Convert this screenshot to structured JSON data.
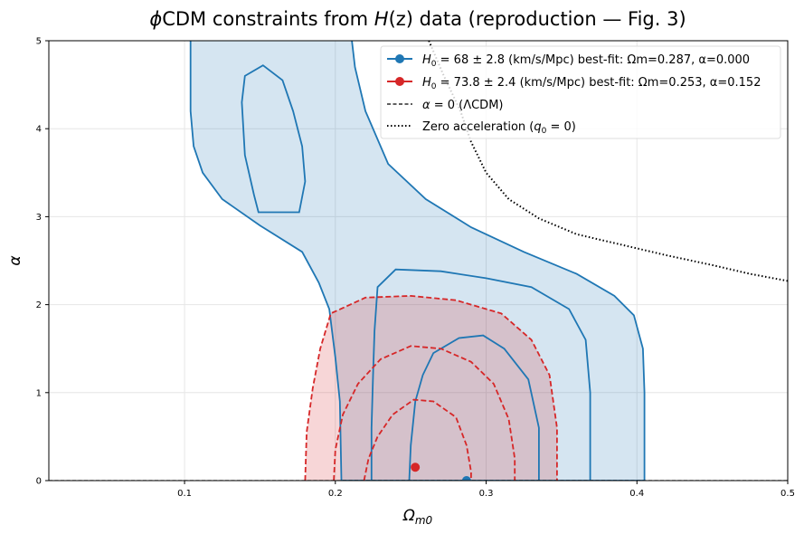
{
  "chart_data": {
    "type": "contour",
    "title_parts": {
      "prefix": "ϕ",
      "mid": "CDM constraints from ",
      "var": "H",
      "rest": "(z) data (reproduction — Fig. 3)"
    },
    "xlabel": {
      "main": "Ω",
      "sub": "m0"
    },
    "ylabel": "α",
    "xlim": [
      0.01,
      0.5
    ],
    "ylim": [
      0,
      5
    ],
    "xticks": [
      0.1,
      0.2,
      0.3,
      0.4,
      0.5
    ],
    "yticks": [
      0,
      1,
      2,
      3,
      4,
      5
    ],
    "grid": true,
    "legend_position": "top-right",
    "series": [
      {
        "name": "H0 = 68 ± 2.8 (km/s/Mpc) best-fit: Ωm=0.287, α=0.000",
        "label_parts": {
          "var": "H",
          "sub": "0",
          "eq": " = 68 ± 2.8",
          "rest": " (km/s/Mpc) best-fit: Ωm=0.287, α=0.000"
        },
        "color": "#1f77b4",
        "best_fit": {
          "x": 0.287,
          "y": 0.0
        },
        "contours": [
          [
            [
              0.104,
              5.0
            ],
            [
              0.104,
              4.2
            ],
            [
              0.106,
              3.8
            ],
            [
              0.112,
              3.5
            ],
            [
              0.125,
              3.2
            ],
            [
              0.15,
              2.9
            ],
            [
              0.178,
              2.6
            ],
            [
              0.189,
              2.25
            ],
            [
              0.196,
              1.95
            ],
            [
              0.2,
              1.4
            ],
            [
              0.203,
              0.9
            ],
            [
              0.204,
              0.0
            ],
            [
              0.405,
              0.0
            ],
            [
              0.405,
              1.0
            ],
            [
              0.404,
              1.5
            ],
            [
              0.398,
              1.88
            ],
            [
              0.385,
              2.1
            ],
            [
              0.36,
              2.35
            ],
            [
              0.325,
              2.6
            ],
            [
              0.29,
              2.88
            ],
            [
              0.26,
              3.2
            ],
            [
              0.235,
              3.6
            ],
            [
              0.22,
              4.2
            ],
            [
              0.213,
              4.7
            ],
            [
              0.211,
              5.0
            ]
          ],
          [
            [
              0.149,
              3.05
            ],
            [
              0.176,
              3.05
            ],
            [
              0.18,
              3.4
            ],
            [
              0.178,
              3.8
            ],
            [
              0.172,
              4.2
            ],
            [
              0.165,
              4.55
            ],
            [
              0.152,
              4.72
            ],
            [
              0.14,
              4.6
            ],
            [
              0.138,
              4.3
            ],
            [
              0.14,
              3.7
            ],
            [
              0.146,
              3.25
            ]
          ],
          [
            [
              0.224,
              0.0
            ],
            [
              0.224,
              0.6
            ],
            [
              0.225,
              1.2
            ],
            [
              0.226,
              1.7
            ],
            [
              0.228,
              2.2
            ],
            [
              0.24,
              2.4
            ],
            [
              0.27,
              2.38
            ],
            [
              0.3,
              2.3
            ],
            [
              0.33,
              2.2
            ],
            [
              0.355,
              1.95
            ],
            [
              0.366,
              1.6
            ],
            [
              0.369,
              1.0
            ],
            [
              0.369,
              0.0
            ]
          ],
          [
            [
              0.249,
              0.0
            ],
            [
              0.25,
              0.4
            ],
            [
              0.253,
              0.9
            ],
            [
              0.258,
              1.2
            ],
            [
              0.265,
              1.45
            ],
            [
              0.282,
              1.62
            ],
            [
              0.298,
              1.65
            ],
            [
              0.312,
              1.5
            ],
            [
              0.328,
              1.15
            ],
            [
              0.335,
              0.6
            ],
            [
              0.335,
              0.0
            ]
          ]
        ]
      },
      {
        "name": "H0 = 73.8 ± 2.4 (km/s/Mpc) best-fit: Ωm=0.253, α=0.152",
        "label_parts": {
          "var": "H",
          "sub": "0",
          "eq": " = 73.8 ± 2.4",
          "rest": " (km/s/Mpc) best-fit: Ωm=0.253, α=0.152"
        },
        "color": "#d62728",
        "best_fit": {
          "x": 0.253,
          "y": 0.152
        },
        "contours": [
          [
            [
              0.18,
              0.0
            ],
            [
              0.181,
              0.55
            ],
            [
              0.185,
              1.05
            ],
            [
              0.19,
              1.5
            ],
            [
              0.197,
              1.9
            ],
            [
              0.22,
              2.08
            ],
            [
              0.25,
              2.1
            ],
            [
              0.28,
              2.05
            ],
            [
              0.31,
              1.9
            ],
            [
              0.33,
              1.6
            ],
            [
              0.342,
              1.2
            ],
            [
              0.347,
              0.6
            ],
            [
              0.347,
              0.0
            ]
          ],
          [
            [
              0.199,
              0.0
            ],
            [
              0.2,
              0.35
            ],
            [
              0.205,
              0.75
            ],
            [
              0.215,
              1.1
            ],
            [
              0.23,
              1.38
            ],
            [
              0.25,
              1.53
            ],
            [
              0.27,
              1.5
            ],
            [
              0.29,
              1.35
            ],
            [
              0.305,
              1.1
            ],
            [
              0.315,
              0.7
            ],
            [
              0.319,
              0.25
            ],
            [
              0.319,
              0.0
            ]
          ],
          [
            [
              0.219,
              0.0
            ],
            [
              0.222,
              0.25
            ],
            [
              0.228,
              0.5
            ],
            [
              0.238,
              0.75
            ],
            [
              0.252,
              0.92
            ],
            [
              0.265,
              0.9
            ],
            [
              0.28,
              0.72
            ],
            [
              0.287,
              0.4
            ],
            [
              0.29,
              0.1
            ],
            [
              0.29,
              0.0
            ]
          ]
        ]
      }
    ],
    "reference_lines": [
      {
        "name": "α = 0 (ΛCDM)",
        "label_parts": {
          "var": "α",
          "rest": " = 0 (ΛCDM)"
        },
        "style": "dashed",
        "color": "#000000",
        "points": [
          [
            0.01,
            0.0
          ],
          [
            0.5,
            0.0
          ]
        ]
      },
      {
        "name": "Zero acceleration (q0 = 0)",
        "label_parts": {
          "pre": "Zero acceleration (",
          "var": "q",
          "sub": "0",
          "rest": " = 0)"
        },
        "style": "dotted",
        "color": "#000000",
        "points": [
          [
            0.262,
            5.0
          ],
          [
            0.272,
            4.6
          ],
          [
            0.283,
            4.2
          ],
          [
            0.29,
            3.85
          ],
          [
            0.3,
            3.5
          ],
          [
            0.315,
            3.2
          ],
          [
            0.335,
            2.98
          ],
          [
            0.36,
            2.8
          ],
          [
            0.39,
            2.68
          ],
          [
            0.42,
            2.56
          ],
          [
            0.45,
            2.45
          ],
          [
            0.475,
            2.35
          ],
          [
            0.5,
            2.27
          ]
        ]
      }
    ]
  }
}
